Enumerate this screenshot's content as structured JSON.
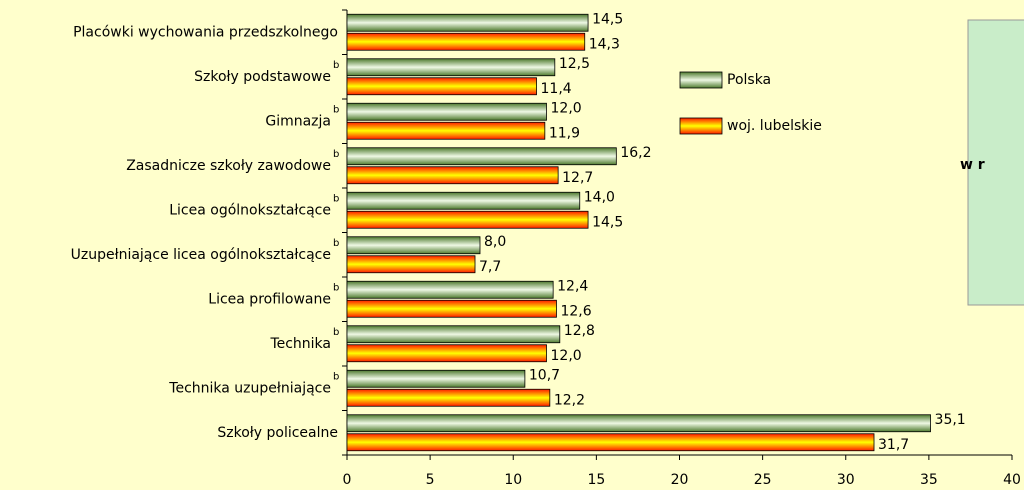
{
  "chart_data": {
    "type": "hbar",
    "categories": [
      "Placówki wychowania przedszkolnego",
      "Szkoły podstawowe",
      "Gimnazja",
      "Zasadnicze szkoły zawodowe",
      "Licea ogólnokształcące",
      "Uzupełniające licea ogólnokształcące",
      "Licea profilowane",
      "Technika",
      "Technika uzupełniające",
      "Szkoły policealne"
    ],
    "category_notes": [
      null,
      "b",
      "b",
      "b",
      "b",
      "b",
      "b",
      "b",
      "b",
      null
    ],
    "series": [
      {
        "name": "Polska",
        "color": "#4e7a2e",
        "values": [
          14.5,
          12.5,
          12.0,
          16.2,
          14.0,
          8.0,
          12.4,
          12.8,
          10.7,
          35.1
        ],
        "value_labels": [
          "14,5",
          "12,5",
          "12,0",
          "16,2",
          "14,0",
          "8,0",
          "12,4",
          "12,8",
          "10,7",
          "35,1"
        ]
      },
      {
        "name": "woj. lubelskie",
        "color": "#ff1a00",
        "values": [
          14.3,
          11.4,
          11.9,
          12.7,
          14.5,
          7.7,
          12.6,
          12.0,
          12.2,
          31.7
        ],
        "value_labels": [
          "14,3",
          "11,4",
          "11,9",
          "12,7",
          "14,5",
          "7,7",
          "12,6",
          "12,0",
          "12,2",
          "31,7"
        ]
      }
    ],
    "xlim": [
      0,
      40
    ],
    "xticks": [
      0,
      5,
      10,
      15,
      20,
      25,
      30,
      35,
      40
    ],
    "annotation": "w r"
  }
}
